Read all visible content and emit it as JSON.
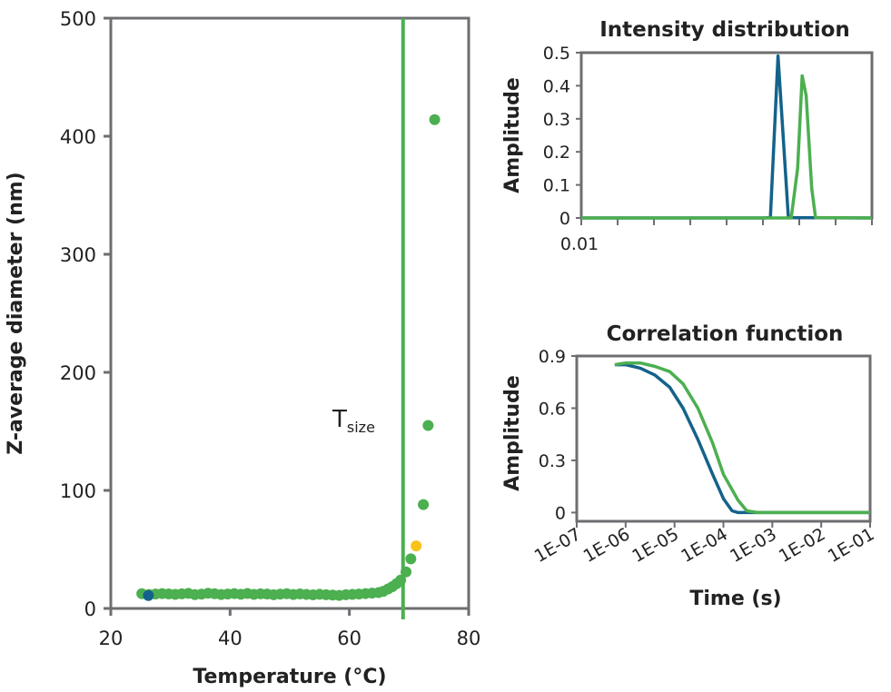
{
  "colors": {
    "frame": "#6d6e71",
    "green": "#4caf50",
    "blue": "#14628b",
    "yellow": "#f9c21b"
  },
  "chart_data": [
    {
      "type": "scatter",
      "xlabel": "Temperature (°C)",
      "ylabel": "Z-average diameter (nm)",
      "xlim": [
        20,
        80
      ],
      "ylim": [
        0,
        500
      ],
      "xticks": [
        "20",
        "40",
        "60",
        "80"
      ],
      "yticks": [
        "0",
        "100",
        "200",
        "300",
        "400",
        "500"
      ],
      "annotation": {
        "main": "T",
        "sub": "size",
        "x": 69
      },
      "vertical_line_x": 69,
      "series": [
        {
          "color": "green",
          "points": [
            [
              25.2,
              12.5
            ],
            [
              26.4,
              11.8
            ],
            [
              27.5,
              12.2
            ],
            [
              28.6,
              12.6
            ],
            [
              29.7,
              12.3
            ],
            [
              30.8,
              11.9
            ],
            [
              31.9,
              12.4
            ],
            [
              33.0,
              12.8
            ],
            [
              34.1,
              11.7
            ],
            [
              35.2,
              12.1
            ],
            [
              36.3,
              12.9
            ],
            [
              37.4,
              12.5
            ],
            [
              38.5,
              11.8
            ],
            [
              39.6,
              12.2
            ],
            [
              40.7,
              12.6
            ],
            [
              41.8,
              12.0
            ],
            [
              42.9,
              12.7
            ],
            [
              44.0,
              11.9
            ],
            [
              45.1,
              12.4
            ],
            [
              46.2,
              12.2
            ],
            [
              47.3,
              11.6
            ],
            [
              48.4,
              12.1
            ],
            [
              49.5,
              12.5
            ],
            [
              50.6,
              11.8
            ],
            [
              51.7,
              12.3
            ],
            [
              52.8,
              11.9
            ],
            [
              53.9,
              11.5
            ],
            [
              55.0,
              12.0
            ],
            [
              56.1,
              11.6
            ],
            [
              57.2,
              11.3
            ],
            [
              58.3,
              11.1
            ],
            [
              59.4,
              11.6
            ],
            [
              60.5,
              11.9
            ],
            [
              61.6,
              12.2
            ],
            [
              62.7,
              12.6
            ],
            [
              63.8,
              13.0
            ],
            [
              64.9,
              13.5
            ],
            [
              65.7,
              14.5
            ],
            [
              66.5,
              16.5
            ],
            [
              67.2,
              18.5
            ],
            [
              67.9,
              21.0
            ],
            [
              68.6,
              24.0
            ],
            [
              69.5,
              31.0
            ],
            [
              70.3,
              42.0
            ],
            [
              72.4,
              88.0
            ],
            [
              73.2,
              155.0
            ],
            [
              74.3,
              414.0
            ]
          ]
        },
        {
          "color": "blue",
          "points": [
            [
              26.3,
              11.0
            ]
          ]
        },
        {
          "color": "yellow",
          "points": [
            [
              71.2,
              53.0
            ]
          ]
        }
      ]
    },
    {
      "type": "line",
      "title": "Intensity distribution",
      "ylabel": "Amplitude",
      "ylim": [
        0,
        0.5
      ],
      "yticks": [
        "0",
        "0.1",
        "0.2",
        "0.3",
        "0.4",
        "0.5"
      ],
      "xtick_labels": [
        "0.01"
      ],
      "x_scale": "log",
      "xlim": [
        0.01,
        1000000
      ],
      "series": [
        {
          "color": "blue",
          "points": [
            [
              0.01,
              0
            ],
            [
              1000,
              0
            ],
            [
              1600,
              0.001
            ],
            [
              2600,
              0.49
            ],
            [
              5000,
              0.001
            ],
            [
              1000000,
              0
            ]
          ]
        },
        {
          "color": "green",
          "points": [
            [
              0.01,
              0
            ],
            [
              6000,
              0
            ],
            [
              9000,
              0.15
            ],
            [
              12000,
              0.43
            ],
            [
              15500,
              0.37
            ],
            [
              22000,
              0.09
            ],
            [
              28000,
              0.001
            ],
            [
              1000000,
              0
            ]
          ]
        }
      ]
    },
    {
      "type": "line",
      "title": "Correlation function",
      "xlabel": "Time (s)",
      "ylabel": "Amplitude",
      "x_scale": "log",
      "xlim": [
        1e-07,
        0.1
      ],
      "ylim": [
        -0.05,
        0.9
      ],
      "yticks": [
        "0",
        "0.3",
        "0.6",
        "0.9"
      ],
      "xtick_labels": [
        "1E-07",
        "1E-06",
        "1E-05",
        "1E-04",
        "1E-03",
        "1E-02",
        "1E-01"
      ],
      "series": [
        {
          "color": "blue",
          "points": [
            [
              6e-07,
              0.85
            ],
            [
              1e-06,
              0.85
            ],
            [
              2e-06,
              0.83
            ],
            [
              4e-06,
              0.79
            ],
            [
              8e-06,
              0.72
            ],
            [
              1.5e-05,
              0.6
            ],
            [
              3e-05,
              0.42
            ],
            [
              6e-05,
              0.22
            ],
            [
              0.0001,
              0.08
            ],
            [
              0.00015,
              0.01
            ],
            [
              0.0002,
              0.0
            ],
            [
              0.0004,
              0.0
            ],
            [
              0.001,
              0.0
            ],
            [
              0.01,
              0.0
            ],
            [
              0.1,
              0.0
            ]
          ]
        },
        {
          "color": "green",
          "points": [
            [
              6e-07,
              0.85
            ],
            [
              1e-06,
              0.86
            ],
            [
              2e-06,
              0.86
            ],
            [
              4e-06,
              0.84
            ],
            [
              8e-06,
              0.81
            ],
            [
              1.5e-05,
              0.74
            ],
            [
              3e-05,
              0.6
            ],
            [
              6e-05,
              0.4
            ],
            [
              0.0001,
              0.22
            ],
            [
              0.0002,
              0.07
            ],
            [
              0.0003,
              0.01
            ],
            [
              0.0005,
              0.0
            ],
            [
              0.001,
              0.0
            ],
            [
              0.01,
              0.0
            ],
            [
              0.1,
              0.0
            ]
          ]
        }
      ]
    }
  ]
}
